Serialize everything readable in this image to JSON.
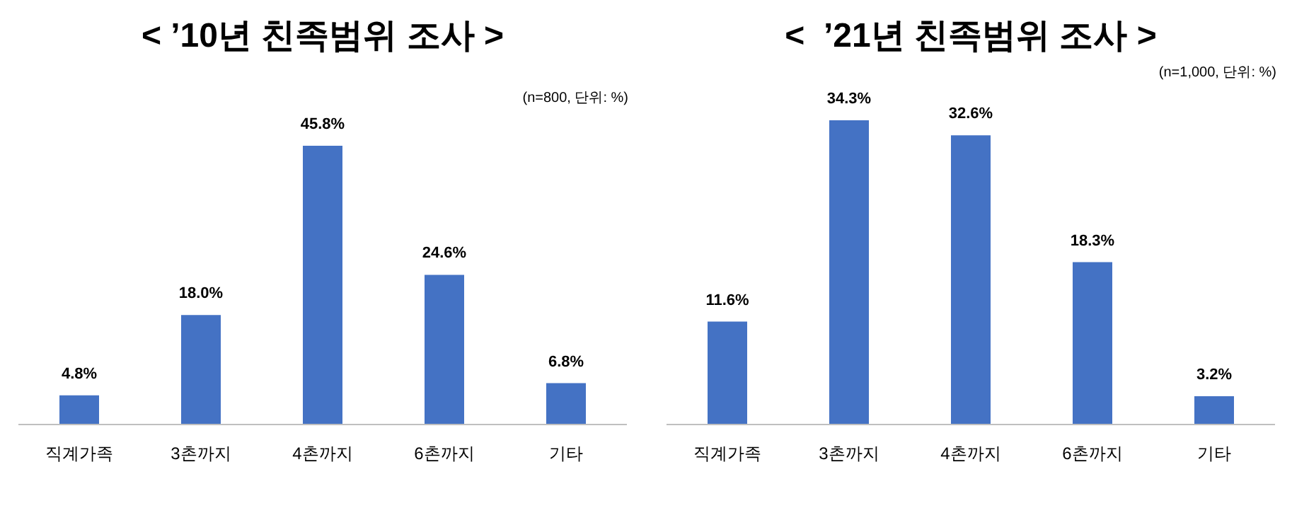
{
  "chart_data": [
    {
      "type": "bar",
      "title": "< ’10년 친족범위 조사 >",
      "subtitle": "(n=800, 단위: %)",
      "categories": [
        "직계가족",
        "3촌까지",
        "4촌까지",
        "6촌까지",
        "기타"
      ],
      "values": [
        4.8,
        18.0,
        45.8,
        24.6,
        6.8
      ],
      "value_labels": [
        "4.8%",
        "18.0%",
        "45.8%",
        "24.6%",
        "6.8%"
      ],
      "color": "#4472c4"
    },
    {
      "type": "bar",
      "title": "<  ’21년 친족범위 조사 >",
      "subtitle": "(n=1,000, 단위: %)",
      "categories": [
        "직계가족",
        "3촌까지",
        "4촌까지",
        "6촌까지",
        "기타"
      ],
      "values": [
        11.6,
        34.3,
        32.6,
        18.3,
        3.2
      ],
      "value_labels": [
        "11.6%",
        "34.3%",
        "32.6%",
        "18.3%",
        "3.2%"
      ],
      "color": "#4472c4"
    }
  ]
}
